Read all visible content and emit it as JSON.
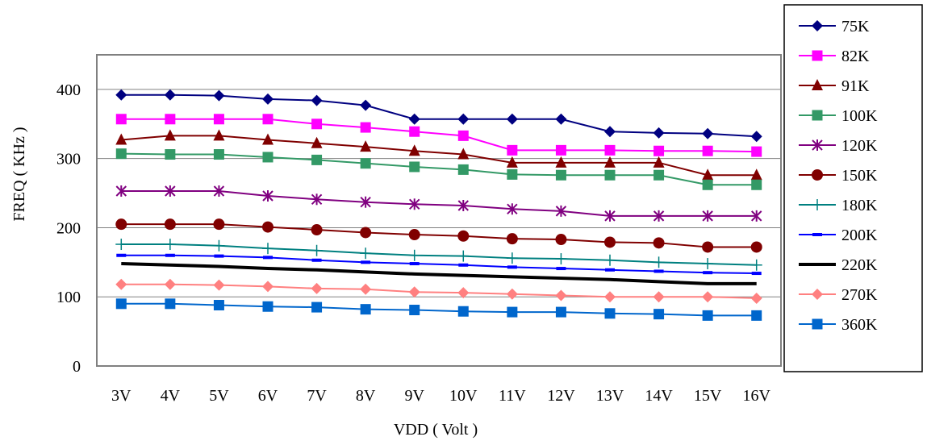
{
  "chart_data": {
    "type": "line",
    "title": "",
    "xlabel": "VDD ( Volt )",
    "ylabel": "FREQ ( KHz )",
    "ylim": [
      0,
      450
    ],
    "yticks": [
      0,
      100,
      200,
      300,
      400
    ],
    "grid": "horizontal",
    "legend_position": "right",
    "categories": [
      "3V",
      "4V",
      "5V",
      "6V",
      "7V",
      "8V",
      "9V",
      "10V",
      "11V",
      "12V",
      "13V",
      "14V",
      "15V",
      "16V"
    ],
    "series": [
      {
        "name": "75K",
        "color": "#000080",
        "marker": "diamond",
        "values": [
          392,
          392,
          391,
          386,
          384,
          377,
          357,
          357,
          357,
          357,
          339,
          337,
          336,
          332
        ]
      },
      {
        "name": "82K",
        "color": "#ff00ff",
        "marker": "square",
        "values": [
          357,
          357,
          357,
          357,
          350,
          345,
          339,
          333,
          312,
          312,
          312,
          311,
          311,
          310
        ]
      },
      {
        "name": "91K",
        "color": "#800000",
        "marker": "triangle",
        "values": [
          327,
          333,
          333,
          327,
          322,
          317,
          311,
          306,
          294,
          294,
          294,
          294,
          276,
          276
        ]
      },
      {
        "name": "100K",
        "color": "#339966",
        "marker": "square",
        "values": [
          307,
          306,
          306,
          302,
          298,
          293,
          288,
          284,
          277,
          276,
          276,
          276,
          262,
          262
        ]
      },
      {
        "name": "120K",
        "color": "#800080",
        "marker": "asterisk",
        "values": [
          253,
          253,
          253,
          246,
          241,
          237,
          234,
          232,
          227,
          224,
          217,
          217,
          217,
          217
        ]
      },
      {
        "name": "150K",
        "color": "#800000",
        "marker": "circle",
        "values": [
          205,
          205,
          205,
          201,
          197,
          193,
          190,
          188,
          184,
          183,
          179,
          178,
          172,
          172
        ]
      },
      {
        "name": "180K",
        "color": "#008080",
        "marker": "plus",
        "values": [
          176,
          176,
          174,
          170,
          167,
          163,
          160,
          159,
          156,
          155,
          153,
          150,
          148,
          146
        ]
      },
      {
        "name": "200K",
        "color": "#0000ff",
        "marker": "dash",
        "values": [
          160,
          160,
          159,
          157,
          153,
          150,
          148,
          146,
          143,
          141,
          139,
          137,
          135,
          134
        ]
      },
      {
        "name": "220K",
        "color": "#000000",
        "marker": "none",
        "values": [
          148,
          146,
          144,
          141,
          139,
          136,
          133,
          131,
          129,
          127,
          125,
          122,
          119,
          119
        ]
      },
      {
        "name": "270K",
        "color": "#ff8080",
        "marker": "diamond",
        "values": [
          118,
          118,
          117,
          115,
          112,
          111,
          107,
          106,
          104,
          102,
          100,
          100,
          100,
          98
        ]
      },
      {
        "name": "360K",
        "color": "#0066cc",
        "marker": "square",
        "values": [
          90,
          90,
          88,
          86,
          85,
          82,
          81,
          79,
          78,
          78,
          76,
          75,
          73,
          73
        ]
      }
    ]
  }
}
